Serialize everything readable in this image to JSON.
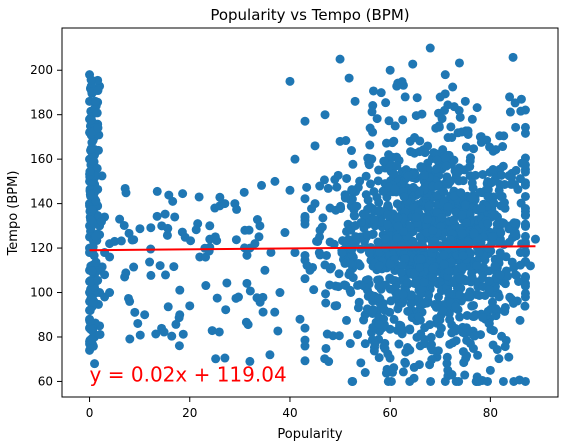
{
  "chart_data": {
    "type": "scatter",
    "title": "Popularity vs Tempo (BPM)",
    "xlabel": "Popularity",
    "ylabel": "Tempo (BPM)",
    "xlim": [
      -5.5,
      93.5
    ],
    "ylim": [
      53,
      219
    ],
    "xticks": [
      0,
      20,
      40,
      60,
      80
    ],
    "yticks": [
      60,
      80,
      100,
      120,
      140,
      160,
      180,
      200
    ],
    "grid": false,
    "legend": "none",
    "colors": {
      "points": "#1f77b4",
      "regression": "#ff0000",
      "equation": "#ff0000",
      "axes": "#000000"
    },
    "regression": {
      "slope": 0.02,
      "intercept": 119.04,
      "x_range": [
        0,
        89
      ]
    },
    "equation_label": "y = 0.02x + 119.04",
    "annotation_position": [
      0,
      60
    ],
    "approx_point_count": 1600,
    "series": [
      {
        "x": [
          0,
          0,
          0,
          0,
          0,
          0,
          0,
          0,
          0,
          0,
          0,
          0,
          0,
          0,
          0,
          0,
          0,
          0,
          0,
          0,
          1,
          1,
          1,
          1,
          1,
          1,
          1,
          1,
          1,
          1,
          1,
          1,
          1,
          2,
          2,
          2,
          2,
          2,
          3,
          3,
          3,
          3,
          4,
          4,
          4,
          5,
          6,
          7,
          8,
          11,
          17,
          18,
          20,
          22,
          24,
          25,
          26,
          27,
          29,
          31,
          32,
          32,
          33,
          34,
          35,
          36,
          37,
          38,
          39,
          40,
          40,
          41,
          41,
          42,
          43,
          44,
          45,
          45,
          46,
          47,
          48,
          49,
          50,
          50,
          51,
          52,
          52,
          53,
          54,
          55,
          56,
          57,
          58,
          59,
          60,
          61,
          62,
          63,
          64,
          65,
          66,
          67,
          68,
          69,
          70,
          71,
          72,
          73,
          74,
          75,
          76,
          77,
          78,
          79,
          80,
          81,
          82,
          83,
          84,
          85,
          86,
          87,
          88,
          89
        ],
        "y": [
          198,
          186,
          178,
          172,
          160,
          150,
          140,
          130,
          120,
          110,
          100,
          92,
          84,
          78,
          74,
          125,
          118,
          105,
          96,
          88,
          182,
          170,
          155,
          138,
          126,
          112,
          102,
          95,
          80,
          68,
          132,
          145,
          162,
          130,
          110,
          100,
          85,
          126,
          98,
          108,
          134,
          118,
          122,
          116,
          100,
          123,
          133,
          107,
          96,
          90,
          134,
          90,
          94,
          116,
          124,
          138,
          139,
          140,
          140,
          128,
          69,
          120,
          122,
          130,
          110,
          72,
          150,
          100,
          127,
          195,
          146,
          160,
          118,
          88,
          84,
          110,
          140,
          166,
          128,
          180,
          138,
          94,
          205,
          168,
          144,
          130,
          101,
          186,
          112,
          90,
          174,
          130,
          117,
          156,
          200,
          132,
          97,
          188,
          168,
          110,
          76,
          148,
          210,
          136,
          112,
          198,
          150,
          118,
          102,
          186,
          126,
          114,
          170,
          88,
          65,
          154,
          124,
          104,
          130,
          108,
          118,
          98,
          112,
          124
        ]
      }
    ]
  }
}
